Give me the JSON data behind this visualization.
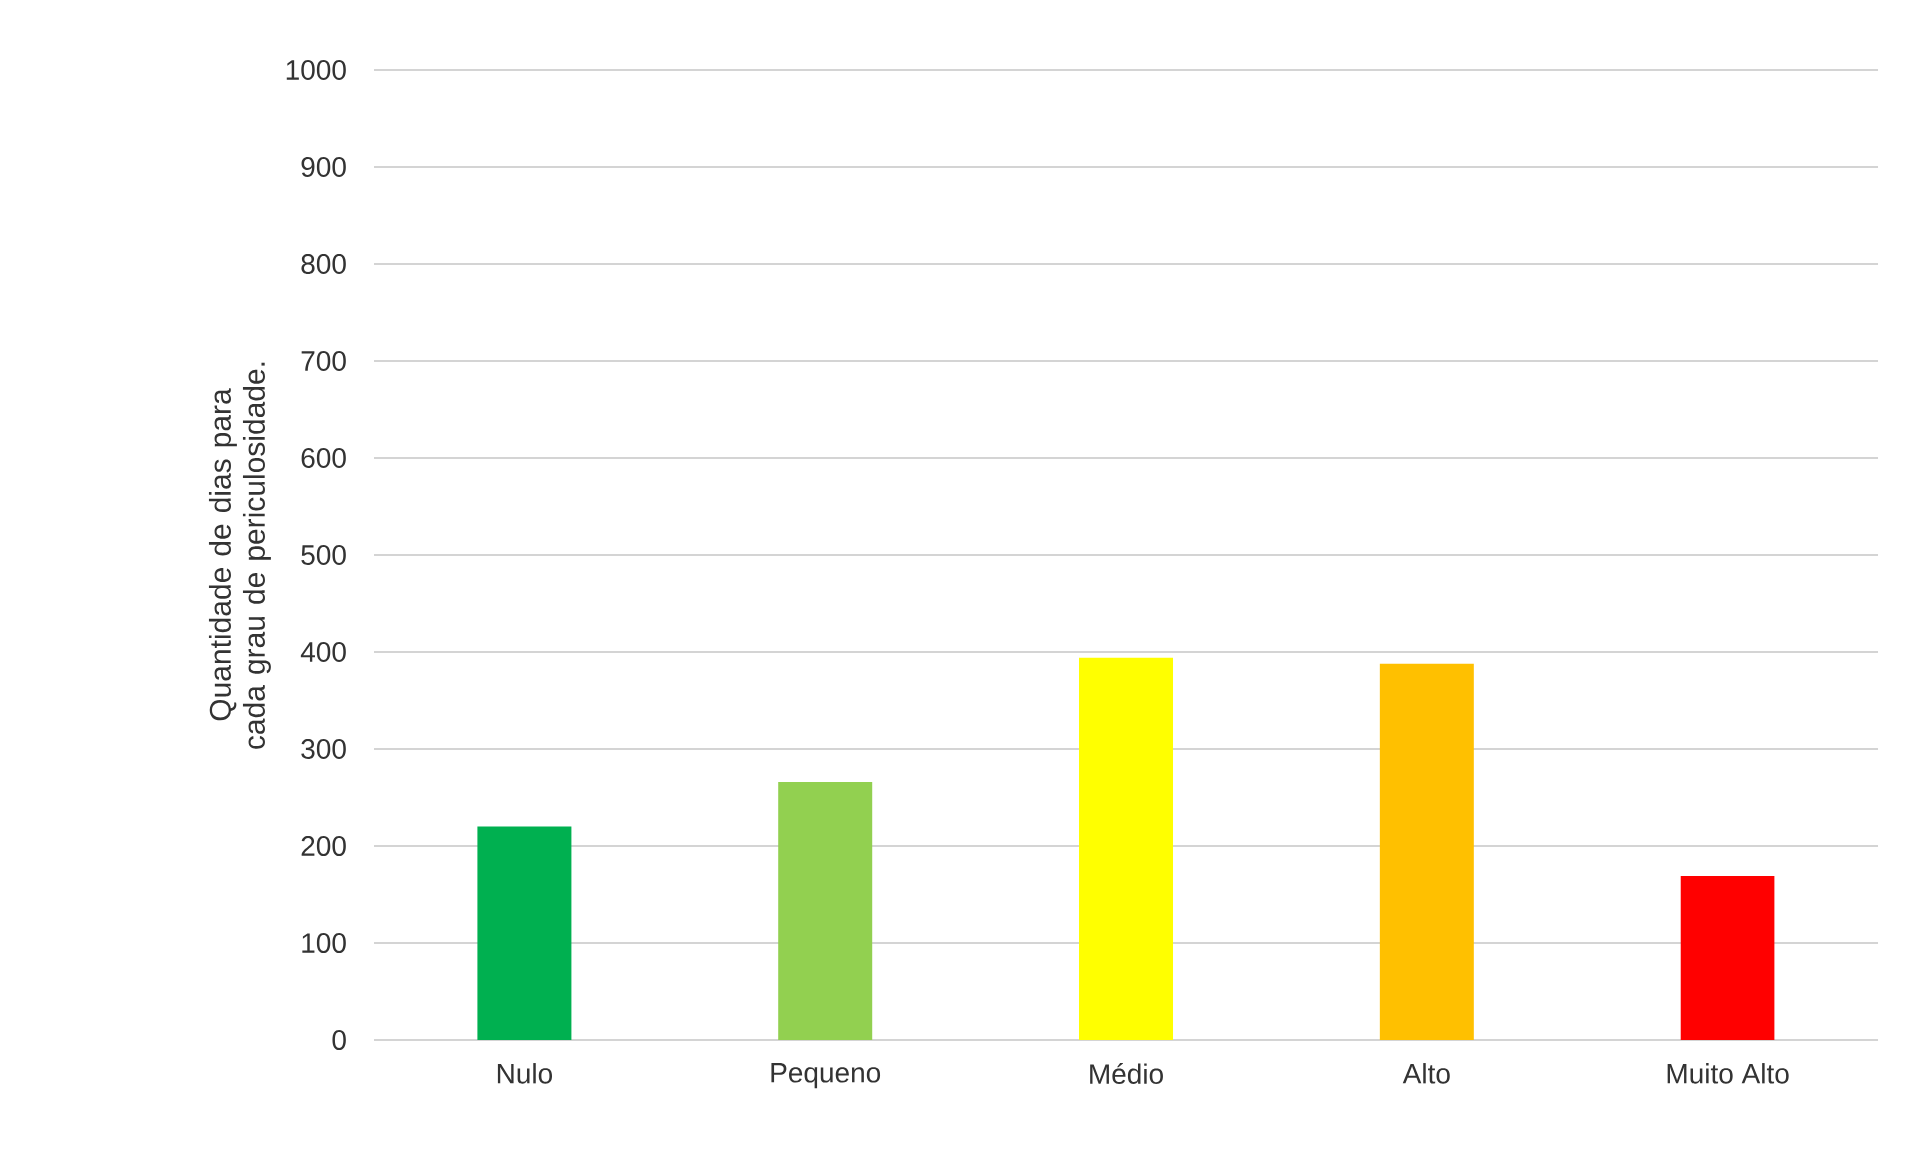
{
  "chart_data": {
    "type": "bar",
    "ylabel": "Quantidade de dias para cada grau de periculosidade.",
    "categories": [
      "Nulo",
      "Pequeno",
      "Médio",
      "Alto",
      "Muito Alto"
    ],
    "values": [
      220,
      266,
      394,
      388,
      169
    ],
    "colors": [
      "#00b050",
      "#92d050",
      "#ffff00",
      "#ffc000",
      "#ff0000"
    ],
    "ylim": [
      0,
      1000
    ],
    "yticks": [
      0,
      100,
      200,
      300,
      400,
      500,
      600,
      700,
      800,
      900,
      1000
    ],
    "grid": "y"
  }
}
